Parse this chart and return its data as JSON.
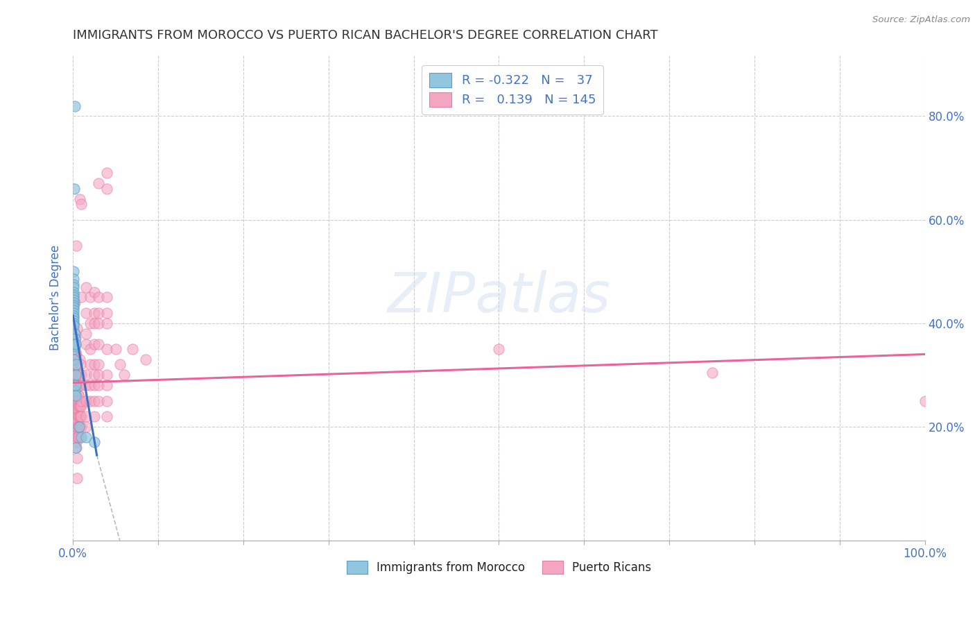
{
  "title": "IMMIGRANTS FROM MOROCCO VS PUERTO RICAN BACHELOR'S DEGREE CORRELATION CHART",
  "source": "Source: ZipAtlas.com",
  "ylabel": "Bachelor's Degree",
  "legend_blue_label": "Immigrants from Morocco",
  "legend_pink_label": "Puerto Ricans",
  "watermark": "ZIPatlas",
  "blue_color": "#92c5de",
  "pink_color": "#f4a6c0",
  "blue_edge_color": "#5b9ec9",
  "pink_edge_color": "#e87da8",
  "blue_line_color": "#3a6fc4",
  "pink_line_color": "#e8649a",
  "blue_scatter": [
    [
      0.2,
      82.0
    ],
    [
      0.15,
      66.0
    ],
    [
      0.1,
      50.0
    ],
    [
      0.1,
      48.5
    ],
    [
      0.1,
      47.5
    ],
    [
      0.1,
      47.0
    ],
    [
      0.1,
      46.0
    ],
    [
      0.1,
      45.5
    ],
    [
      0.1,
      45.0
    ],
    [
      0.1,
      44.5
    ],
    [
      0.1,
      44.0
    ],
    [
      0.1,
      43.5
    ],
    [
      0.1,
      43.0
    ],
    [
      0.1,
      42.5
    ],
    [
      0.1,
      42.0
    ],
    [
      0.1,
      41.5
    ],
    [
      0.1,
      41.0
    ],
    [
      0.1,
      40.5
    ],
    [
      0.1,
      40.0
    ],
    [
      0.1,
      39.5
    ],
    [
      0.1,
      35.0
    ],
    [
      0.1,
      33.0
    ],
    [
      0.2,
      38.0
    ],
    [
      0.2,
      37.0
    ],
    [
      0.2,
      36.0
    ],
    [
      0.2,
      35.5
    ],
    [
      0.2,
      27.0
    ],
    [
      0.3,
      36.0
    ],
    [
      0.3,
      30.0
    ],
    [
      0.3,
      28.0
    ],
    [
      0.3,
      26.0
    ],
    [
      0.3,
      16.0
    ],
    [
      0.4,
      32.0
    ],
    [
      0.7,
      20.0
    ],
    [
      1.0,
      18.0
    ],
    [
      1.5,
      18.0
    ],
    [
      2.5,
      17.0
    ]
  ],
  "pink_scatter": [
    [
      0.1,
      44.0
    ],
    [
      0.1,
      40.0
    ],
    [
      0.1,
      39.0
    ],
    [
      0.1,
      37.0
    ],
    [
      0.1,
      33.0
    ],
    [
      0.1,
      32.0
    ],
    [
      0.1,
      31.0
    ],
    [
      0.1,
      30.0
    ],
    [
      0.1,
      28.0
    ],
    [
      0.1,
      27.0
    ],
    [
      0.1,
      26.5
    ],
    [
      0.1,
      26.0
    ],
    [
      0.1,
      25.0
    ],
    [
      0.1,
      24.0
    ],
    [
      0.1,
      23.0
    ],
    [
      0.1,
      22.0
    ],
    [
      0.2,
      44.0
    ],
    [
      0.2,
      38.0
    ],
    [
      0.2,
      35.0
    ],
    [
      0.2,
      32.0
    ],
    [
      0.2,
      31.0
    ],
    [
      0.2,
      30.0
    ],
    [
      0.2,
      29.0
    ],
    [
      0.2,
      27.0
    ],
    [
      0.2,
      25.0
    ],
    [
      0.2,
      24.0
    ],
    [
      0.2,
      23.0
    ],
    [
      0.2,
      22.0
    ],
    [
      0.2,
      21.0
    ],
    [
      0.2,
      20.0
    ],
    [
      0.3,
      37.0
    ],
    [
      0.3,
      34.0
    ],
    [
      0.3,
      33.0
    ],
    [
      0.3,
      30.0
    ],
    [
      0.3,
      28.0
    ],
    [
      0.3,
      27.0
    ],
    [
      0.3,
      26.0
    ],
    [
      0.3,
      25.0
    ],
    [
      0.3,
      24.0
    ],
    [
      0.3,
      23.0
    ],
    [
      0.3,
      22.0
    ],
    [
      0.3,
      21.0
    ],
    [
      0.3,
      20.0
    ],
    [
      0.3,
      19.0
    ],
    [
      0.4,
      55.0
    ],
    [
      0.4,
      34.0
    ],
    [
      0.4,
      30.0
    ],
    [
      0.4,
      26.0
    ],
    [
      0.4,
      25.0
    ],
    [
      0.4,
      24.0
    ],
    [
      0.4,
      23.0
    ],
    [
      0.4,
      22.0
    ],
    [
      0.4,
      21.0
    ],
    [
      0.4,
      20.0
    ],
    [
      0.4,
      18.0
    ],
    [
      0.4,
      17.0
    ],
    [
      0.4,
      16.0
    ],
    [
      0.5,
      39.0
    ],
    [
      0.5,
      30.0
    ],
    [
      0.5,
      28.0
    ],
    [
      0.5,
      25.0
    ],
    [
      0.5,
      24.0
    ],
    [
      0.5,
      22.0
    ],
    [
      0.5,
      21.0
    ],
    [
      0.5,
      20.0
    ],
    [
      0.5,
      18.0
    ],
    [
      0.5,
      14.0
    ],
    [
      0.5,
      10.0
    ],
    [
      0.6,
      30.0
    ],
    [
      0.6,
      26.0
    ],
    [
      0.6,
      24.0
    ],
    [
      0.6,
      23.0
    ],
    [
      0.6,
      22.0
    ],
    [
      0.6,
      20.0
    ],
    [
      0.6,
      18.0
    ],
    [
      0.7,
      30.0
    ],
    [
      0.7,
      26.0
    ],
    [
      0.7,
      25.0
    ],
    [
      0.7,
      24.0
    ],
    [
      0.7,
      22.0
    ],
    [
      0.7,
      20.0
    ],
    [
      0.7,
      18.0
    ],
    [
      0.8,
      64.0
    ],
    [
      0.8,
      33.0
    ],
    [
      0.8,
      28.0
    ],
    [
      0.8,
      24.0
    ],
    [
      0.8,
      22.0
    ],
    [
      0.8,
      20.0
    ],
    [
      0.9,
      32.0
    ],
    [
      0.9,
      28.0
    ],
    [
      0.9,
      24.0
    ],
    [
      0.9,
      22.0
    ],
    [
      1.0,
      63.0
    ],
    [
      1.0,
      45.0
    ],
    [
      1.0,
      30.0
    ],
    [
      1.0,
      28.0
    ],
    [
      1.0,
      24.0
    ],
    [
      1.0,
      22.0
    ],
    [
      1.0,
      20.0
    ],
    [
      1.0,
      25.0
    ],
    [
      1.5,
      47.0
    ],
    [
      1.5,
      42.0
    ],
    [
      1.5,
      38.0
    ],
    [
      1.5,
      36.0
    ],
    [
      1.5,
      30.0
    ],
    [
      1.5,
      28.0
    ],
    [
      1.5,
      25.0
    ],
    [
      1.5,
      22.0
    ],
    [
      1.5,
      20.0
    ],
    [
      2.0,
      45.0
    ],
    [
      2.0,
      40.0
    ],
    [
      2.0,
      35.0
    ],
    [
      2.0,
      32.0
    ],
    [
      2.0,
      28.0
    ],
    [
      2.0,
      25.0
    ],
    [
      2.5,
      46.0
    ],
    [
      2.5,
      42.0
    ],
    [
      2.5,
      40.0
    ],
    [
      2.5,
      36.0
    ],
    [
      2.5,
      32.0
    ],
    [
      2.5,
      30.0
    ],
    [
      2.5,
      28.0
    ],
    [
      2.5,
      25.0
    ],
    [
      2.5,
      22.0
    ],
    [
      3.0,
      67.0
    ],
    [
      3.0,
      45.0
    ],
    [
      3.0,
      42.0
    ],
    [
      3.0,
      40.0
    ],
    [
      3.0,
      36.0
    ],
    [
      3.0,
      32.0
    ],
    [
      3.0,
      30.0
    ],
    [
      3.0,
      28.0
    ],
    [
      3.0,
      25.0
    ],
    [
      4.0,
      69.0
    ],
    [
      4.0,
      66.0
    ],
    [
      4.0,
      45.0
    ],
    [
      4.0,
      42.0
    ],
    [
      4.0,
      40.0
    ],
    [
      4.0,
      35.0
    ],
    [
      4.0,
      30.0
    ],
    [
      4.0,
      28.0
    ],
    [
      4.0,
      25.0
    ],
    [
      4.0,
      22.0
    ],
    [
      5.0,
      35.0
    ],
    [
      5.5,
      32.0
    ],
    [
      6.0,
      30.0
    ],
    [
      7.0,
      35.0
    ],
    [
      8.5,
      33.0
    ],
    [
      50.0,
      35.0
    ],
    [
      75.0,
      30.5
    ],
    [
      100.0,
      25.0
    ]
  ],
  "blue_trendline_solid": [
    [
      0.0,
      41.5
    ],
    [
      2.8,
      14.5
    ]
  ],
  "blue_trendline_dashed": [
    [
      2.8,
      14.5
    ],
    [
      5.5,
      -2.0
    ]
  ],
  "pink_trendline": [
    [
      0.0,
      28.5
    ],
    [
      100.0,
      34.0
    ]
  ],
  "xlim": [
    0.0,
    100.0
  ],
  "ylim": [
    -2.0,
    92.0
  ],
  "ytick_values": [
    20.0,
    40.0,
    60.0,
    80.0
  ],
  "ytick_labels": [
    "20.0%",
    "40.0%",
    "60.0%",
    "80.0%"
  ],
  "xtick_positions": [
    0.0,
    10.0,
    20.0,
    30.0,
    40.0,
    50.0,
    60.0,
    70.0,
    80.0,
    90.0,
    100.0
  ],
  "background_color": "#ffffff",
  "grid_color": "#cccccc",
  "title_color": "#333333",
  "axis_label_color": "#4472c4"
}
